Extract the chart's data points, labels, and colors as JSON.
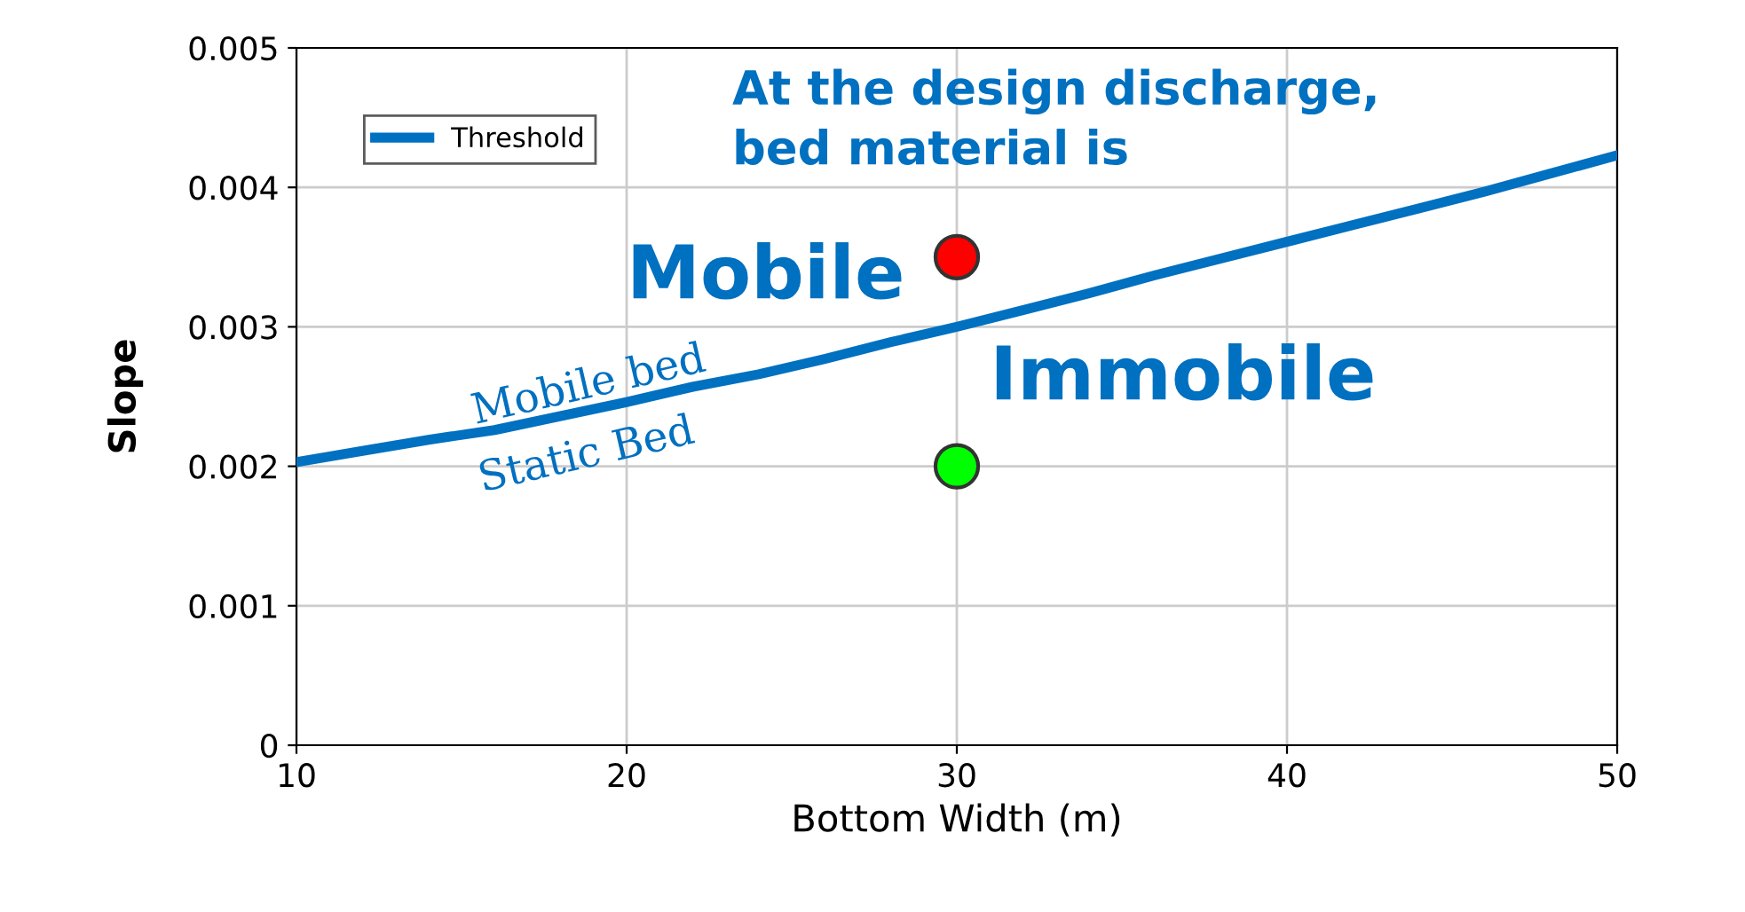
{
  "chart_data": {
    "type": "line",
    "xlabel": "Bottom Width (m)",
    "ylabel": "Slope",
    "xlim": [
      10,
      50
    ],
    "ylim": [
      0,
      0.005
    ],
    "xticks": [
      10,
      20,
      30,
      40,
      50
    ],
    "yticks": [
      {
        "value": 0,
        "label": "0"
      },
      0.001,
      0.002,
      0.003,
      0.004,
      0.005
    ],
    "grid": true,
    "legend": "top left",
    "series": [
      {
        "name": "Threshold",
        "color": "#0070c0",
        "x": [
          10,
          12,
          14,
          16,
          18,
          20,
          22,
          24,
          26,
          28,
          30,
          32,
          34,
          36,
          38,
          40,
          42,
          44,
          46,
          48,
          50
        ],
        "values": [
          0.00203,
          0.00211,
          0.00219,
          0.00226,
          0.00236,
          0.00246,
          0.00257,
          0.00266,
          0.00277,
          0.00289,
          0.003,
          0.00312,
          0.00324,
          0.00337,
          0.00349,
          0.00361,
          0.00373,
          0.00385,
          0.00397,
          0.0041,
          0.00423
        ],
        "line_style": "solid",
        "marker": "none"
      },
      {
        "type": "scatter",
        "color": "#ff0000",
        "x": [
          30
        ],
        "values": [
          0.0035
        ],
        "marker": "circle"
      },
      {
        "type": "scatter",
        "color": "#00ff00",
        "x": [
          30
        ],
        "values": [
          0.002
        ],
        "marker": "circle"
      }
    ],
    "annotations": [
      "At the design discharge,\nbed material is",
      "Mobile",
      "Immobile",
      "Mobile bed",
      "Static Bed"
    ]
  }
}
